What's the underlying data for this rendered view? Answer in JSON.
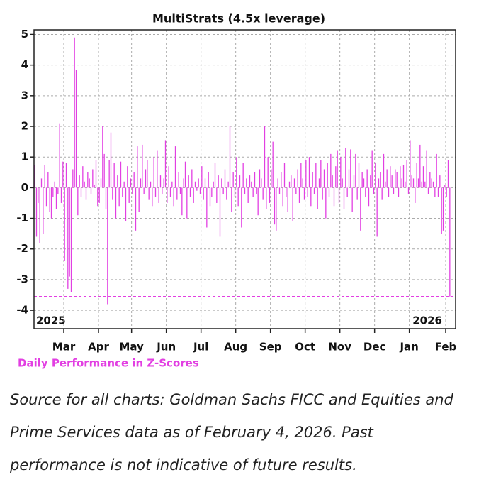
{
  "chart_data": {
    "type": "bar",
    "title": "MultiStrats (4.5x leverage)",
    "y_label": "Daily Performance in Z-Scores",
    "color": "#e23fe2",
    "values": [
      0.75,
      -1.6,
      -0.5,
      -1.8,
      0.3,
      -1.5,
      0.75,
      -0.6,
      0.5,
      -0.8,
      -1.0,
      -0.3,
      0.2,
      -0.7,
      -0.2,
      2.1,
      -0.5,
      0.85,
      -2.4,
      0.8,
      -3.3,
      -2.9,
      -3.4,
      0.6,
      4.9,
      3.85,
      -0.9,
      0.4,
      -0.3,
      0.7,
      0.2,
      -0.4,
      0.5,
      0.3,
      -0.2,
      0.6,
      0.1,
      0.9,
      -0.6,
      -0.5,
      0.3,
      2.0,
      1.1,
      -0.7,
      -3.8,
      0.9,
      1.8,
      -0.4,
      0.8,
      -1.0,
      0.4,
      -0.6,
      0.85,
      -0.3,
      0.2,
      -1.1,
      0.7,
      -0.5,
      0.3,
      -0.2,
      0.5,
      -1.4,
      1.35,
      -0.8,
      0.3,
      1.4,
      -0.2,
      0.6,
      0.9,
      -0.4,
      0.2,
      -0.6,
      1.0,
      -0.3,
      1.2,
      -0.5,
      0.4,
      -0.2,
      0.3,
      1.55,
      -0.5,
      0.7,
      -0.3,
      0.2,
      -0.6,
      1.35,
      -0.4,
      0.5,
      -0.2,
      -0.9,
      0.3,
      0.85,
      -1.0,
      0.4,
      -0.3,
      0.6,
      -0.5,
      0.2,
      -0.1,
      0.3,
      -0.2,
      0.7,
      -0.4,
      0.3,
      -1.3,
      0.5,
      -0.6,
      -0.3,
      0.2,
      0.8,
      -0.5,
      0.4,
      -1.6,
      0.3,
      -0.2,
      0.6,
      -0.4,
      0.2,
      2.0,
      -0.8,
      0.5,
      -0.3,
      1.0,
      -0.6,
      0.4,
      -1.3,
      0.8,
      -0.2,
      0.3,
      -0.5,
      0.4,
      0.2,
      -0.3,
      0.5,
      -0.2,
      -0.9,
      0.6,
      0.3,
      -0.4,
      2.0,
      -0.7,
      1.0,
      -0.5,
      0.6,
      1.5,
      -1.2,
      -1.4,
      0.3,
      -0.2,
      0.5,
      -0.6,
      0.8,
      -0.3,
      -0.8,
      0.2,
      0.4,
      -1.1,
      0.3,
      -0.2,
      0.6,
      -0.5,
      0.8,
      0.3,
      -0.4,
      0.9,
      -0.3,
      1.0,
      -0.6,
      0.5,
      -0.2,
      0.8,
      -0.7,
      0.3,
      0.9,
      -0.4,
      0.6,
      -1.0,
      0.8,
      -0.3,
      1.1,
      0.4,
      -0.6,
      0.7,
      1.2,
      -0.5,
      1.0,
      0.3,
      -0.7,
      1.3,
      -0.3,
      0.6,
      1.25,
      -0.8,
      0.4,
      1.1,
      -0.4,
      0.8,
      -1.4,
      0.5,
      0.3,
      -0.3,
      0.6,
      -0.6,
      0.4,
      1.2,
      -0.2,
      0.8,
      -1.6,
      0.3,
      0.5,
      -0.4,
      1.1,
      0.2,
      0.6,
      -0.3,
      0.7,
      0.4,
      -0.2,
      0.6,
      0.5,
      -0.3,
      0.7,
      0.3,
      0.75,
      0.2,
      0.9,
      -0.2,
      1.55,
      0.4,
      0.3,
      -0.5,
      0.8,
      0.3,
      1.4,
      0.2,
      0.7,
      0.2,
      1.2,
      -0.2,
      0.5,
      0.3,
      0.2,
      -0.3,
      1.1,
      -0.3,
      0.4,
      -1.5,
      -1.4,
      0.1,
      -0.3,
      0.9,
      -3.55
    ],
    "xlim": [
      0,
      255
    ],
    "xticks": [
      {
        "value": 18,
        "label": "Mar"
      },
      {
        "value": 39,
        "label": "Apr"
      },
      {
        "value": 59,
        "label": "May"
      },
      {
        "value": 80,
        "label": "Jun"
      },
      {
        "value": 101,
        "label": "Jul"
      },
      {
        "value": 122,
        "label": "Aug"
      },
      {
        "value": 143,
        "label": "Sep"
      },
      {
        "value": 164,
        "label": "Oct"
      },
      {
        "value": 185,
        "label": "Nov"
      },
      {
        "value": 206,
        "label": "Dec"
      },
      {
        "value": 227,
        "label": "Jan"
      },
      {
        "value": 249,
        "label": "Feb"
      }
    ],
    "ylim": [
      -4.6,
      5.15
    ],
    "yticks": [
      -4,
      -3,
      -2,
      -1,
      0,
      1,
      2,
      3,
      4,
      5
    ],
    "grid": true,
    "reference_line": -3.55,
    "annotations": [
      "2025",
      "2026"
    ]
  },
  "caption": "Source for all charts: Goldman Sachs FICC and Equities and Prime Services data as of February 4, 2026. Past performance is not indicative of future results."
}
